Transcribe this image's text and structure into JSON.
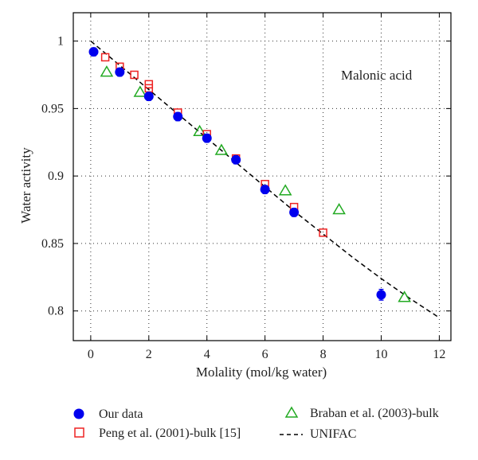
{
  "chart_data": {
    "type": "scatter",
    "xlabel": "Molality (mol/kg water)",
    "ylabel": "Water activity",
    "annotation": "Malonic acid",
    "xlim": [
      -0.6,
      12.4
    ],
    "ylim": [
      0.778,
      1.021
    ],
    "x_ticks": [
      0,
      2,
      4,
      6,
      8,
      10,
      12
    ],
    "y_ticks": [
      0.8,
      0.85,
      0.9,
      0.95,
      1.0
    ],
    "x_tick_labels": [
      "0",
      "2",
      "4",
      "6",
      "8",
      "10",
      "12"
    ],
    "y_tick_labels": [
      "0.8",
      "0.85",
      "0.9",
      "0.95",
      "1"
    ],
    "grid": true,
    "legend_position": "bottom",
    "series": [
      {
        "name": "Our data",
        "marker": "filled-circle",
        "color": "#0000ee",
        "x": [
          0.1,
          1.0,
          2.0,
          3.0,
          4.0,
          5.0,
          6.0,
          7.0,
          10.0
        ],
        "y": [
          0.992,
          0.977,
          0.959,
          0.944,
          0.928,
          0.912,
          0.89,
          0.873,
          0.812
        ],
        "errors": [
          0.003,
          0.003,
          0.003,
          0.003,
          0.003,
          0.003,
          0.003,
          0.003,
          0.004
        ]
      },
      {
        "name": "Peng et al. (2001)-bulk [15]",
        "marker": "open-square",
        "color": "#ee2222",
        "x": [
          0.5,
          1.0,
          1.5,
          2.0,
          2.0,
          3.0,
          4.0,
          5.0,
          6.0,
          7.0,
          8.0
        ],
        "y": [
          0.988,
          0.981,
          0.975,
          0.968,
          0.965,
          0.947,
          0.931,
          0.913,
          0.894,
          0.877,
          0.858
        ]
      },
      {
        "name": "Braban et al. (2003)-bulk",
        "marker": "open-triangle",
        "color": "#22aa22",
        "x": [
          0.55,
          1.7,
          3.75,
          4.5,
          6.7,
          8.55,
          10.8
        ],
        "y": [
          0.977,
          0.962,
          0.933,
          0.919,
          0.889,
          0.875,
          0.81
        ]
      },
      {
        "name": "UNIFAC",
        "marker": "dashed-line",
        "color": "#000000",
        "x": [
          0,
          1,
          2,
          3,
          4,
          5,
          6,
          7,
          8,
          9,
          10,
          11,
          12
        ],
        "y": [
          1.0,
          0.982,
          0.964,
          0.946,
          0.928,
          0.91,
          0.892,
          0.874,
          0.857,
          0.84,
          0.824,
          0.809,
          0.795
        ]
      }
    ]
  }
}
